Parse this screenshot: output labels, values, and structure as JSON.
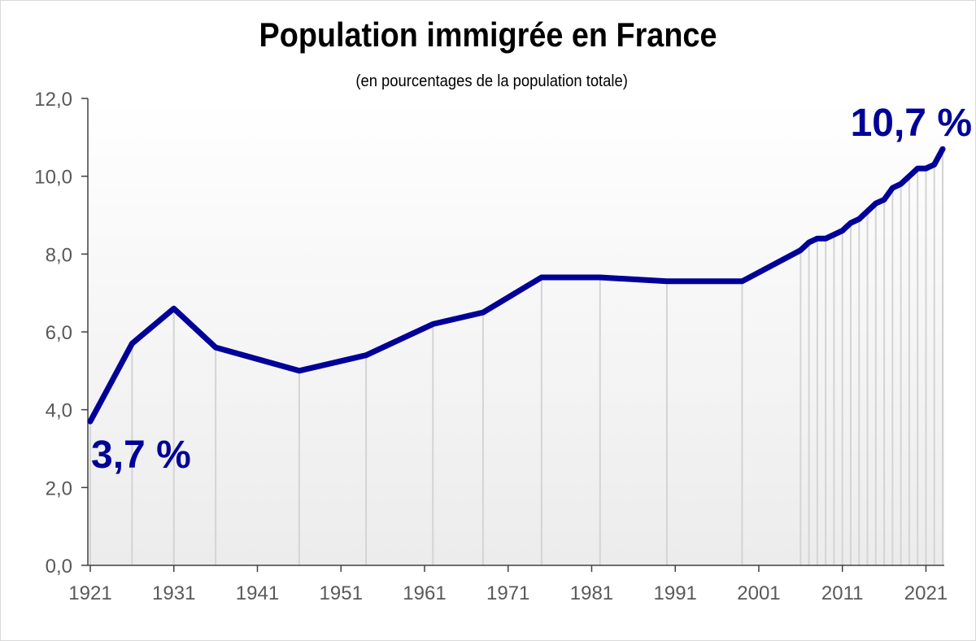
{
  "chart_data": {
    "type": "line",
    "title": "Population immigrée en France",
    "subtitle": "(en pourcentages de la population totale)",
    "xlabel": "",
    "ylabel": "",
    "xlim": [
      1921,
      2023
    ],
    "ylim": [
      0,
      12
    ],
    "grid": "vertical drop lines at each data point",
    "x_tick_labels": [
      "1921",
      "1931",
      "1941",
      "1951",
      "1961",
      "1971",
      "1981",
      "1991",
      "2001",
      "2011",
      "2021"
    ],
    "y_tick_labels": [
      "0,0",
      "2,0",
      "4,0",
      "6,0",
      "8,0",
      "10,0",
      "12,0"
    ],
    "series": [
      {
        "x": [
          1921,
          1926,
          1931,
          1936,
          1946,
          1954,
          1962,
          1968,
          1975,
          1982,
          1990,
          1999,
          2006,
          2007,
          2008,
          2009,
          2010,
          2011,
          2012,
          2013,
          2014,
          2015,
          2016,
          2017,
          2018,
          2019,
          2020,
          2021,
          2022,
          2023
        ],
        "y": [
          3.7,
          5.7,
          6.6,
          5.6,
          5.0,
          5.4,
          6.2,
          6.5,
          7.4,
          7.4,
          7.3,
          7.3,
          8.1,
          8.3,
          8.4,
          8.4,
          8.5,
          8.6,
          8.8,
          8.9,
          9.1,
          9.3,
          9.4,
          9.7,
          9.8,
          10.0,
          10.2,
          10.2,
          10.3,
          10.7
        ]
      }
    ],
    "annotations": [
      {
        "text": "3,7 %",
        "x": 1921,
        "y": 3.7
      },
      {
        "text": "10,7 %",
        "x": 2023,
        "y": 10.7
      }
    ],
    "colors": {
      "line": "#000099",
      "annotation": "#000099",
      "drop_line": "#d4d4d4",
      "axis": "#404040",
      "tick_text": "#595959"
    }
  }
}
